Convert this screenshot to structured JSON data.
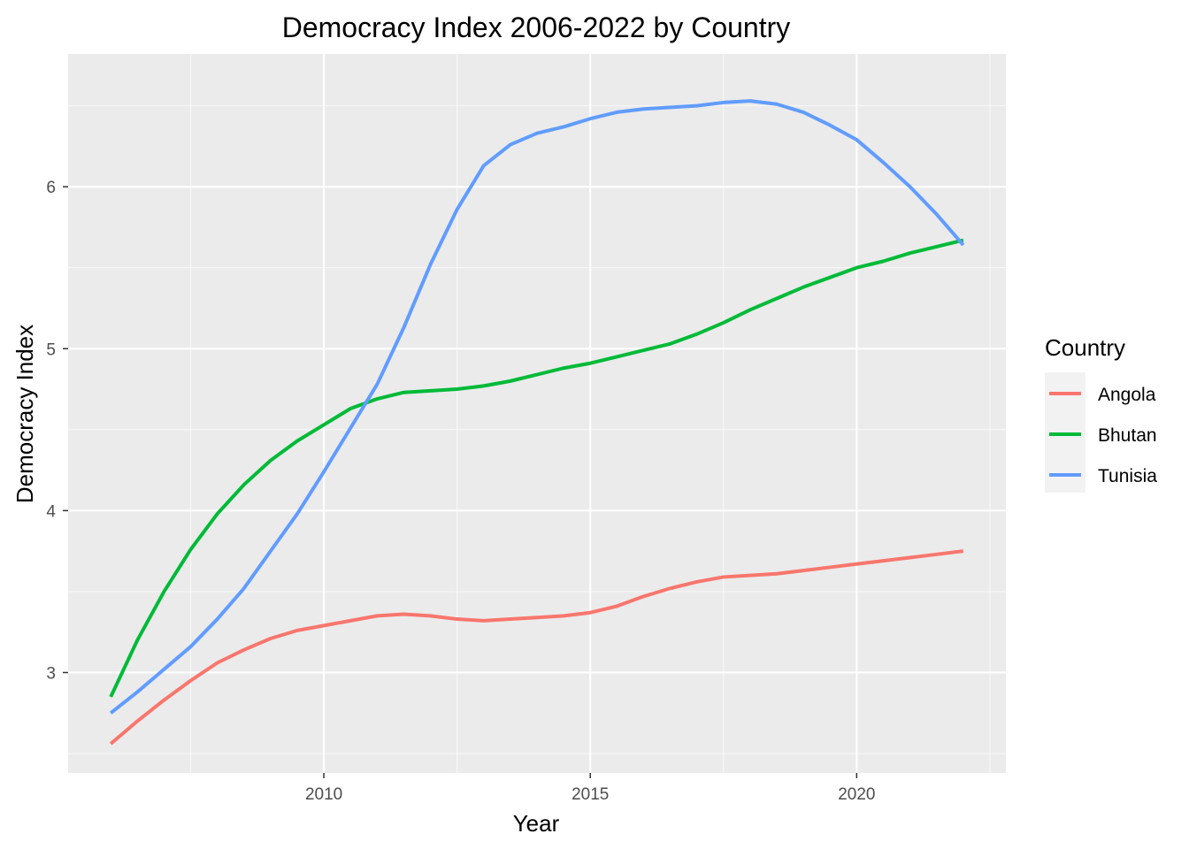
{
  "chart_data": {
    "type": "line",
    "title": "Democracy Index 2006-2022 by Country",
    "xlabel": "Year",
    "ylabel": "Democracy Index",
    "xlim": [
      2005.2,
      2022.8
    ],
    "ylim": [
      2.38,
      6.82
    ],
    "x_ticks": [
      2010,
      2015,
      2020
    ],
    "x_tick_labels": [
      "2010",
      "2015",
      "2020"
    ],
    "x_minor_ticks": [
      2007.5,
      2012.5,
      2017.5,
      2022.5
    ],
    "y_ticks": [
      3,
      4,
      5,
      6
    ],
    "y_tick_labels": [
      "3",
      "4",
      "5",
      "6"
    ],
    "y_minor_ticks": [
      2.5,
      3.5,
      4.5,
      5.5,
      6.5
    ],
    "grid": true,
    "background": "#ebebeb",
    "legend": {
      "title": "Country",
      "position": "right"
    },
    "series": [
      {
        "name": "Angola",
        "color": "#f8766d",
        "x": [
          2006,
          2006.5,
          2007,
          2007.5,
          2008,
          2008.5,
          2009,
          2009.5,
          2010,
          2010.5,
          2011,
          2011.5,
          2012,
          2012.5,
          2013,
          2013.5,
          2014,
          2014.5,
          2015,
          2015.5,
          2016,
          2016.5,
          2017,
          2017.5,
          2018,
          2018.5,
          2019,
          2019.5,
          2020,
          2020.5,
          2021,
          2021.5,
          2022
        ],
        "y": [
          2.56,
          2.7,
          2.83,
          2.95,
          3.06,
          3.14,
          3.21,
          3.26,
          3.29,
          3.32,
          3.35,
          3.36,
          3.35,
          3.33,
          3.32,
          3.33,
          3.34,
          3.35,
          3.37,
          3.41,
          3.47,
          3.52,
          3.56,
          3.59,
          3.6,
          3.61,
          3.63,
          3.65,
          3.67,
          3.69,
          3.71,
          3.73,
          3.75
        ]
      },
      {
        "name": "Bhutan",
        "color": "#00ba38",
        "x": [
          2006,
          2006.5,
          2007,
          2007.5,
          2008,
          2008.5,
          2009,
          2009.5,
          2010,
          2010.5,
          2011,
          2011.5,
          2012,
          2012.5,
          2013,
          2013.5,
          2014,
          2014.5,
          2015,
          2015.5,
          2016,
          2016.5,
          2017,
          2017.5,
          2018,
          2018.5,
          2019,
          2019.5,
          2020,
          2020.5,
          2021,
          2021.5,
          2022
        ],
        "y": [
          2.85,
          3.2,
          3.5,
          3.76,
          3.98,
          4.16,
          4.31,
          4.43,
          4.53,
          4.63,
          4.69,
          4.73,
          4.74,
          4.75,
          4.77,
          4.8,
          4.84,
          4.88,
          4.91,
          4.95,
          4.99,
          5.03,
          5.09,
          5.16,
          5.24,
          5.31,
          5.38,
          5.44,
          5.5,
          5.54,
          5.59,
          5.63,
          5.67
        ]
      },
      {
        "name": "Tunisia",
        "color": "#619cff",
        "x": [
          2006,
          2006.5,
          2007,
          2007.5,
          2008,
          2008.5,
          2009,
          2009.5,
          2010,
          2010.5,
          2011,
          2011.5,
          2012,
          2012.5,
          2013,
          2013.5,
          2014,
          2014.5,
          2015,
          2015.5,
          2016,
          2016.5,
          2017,
          2017.5,
          2018,
          2018.5,
          2019,
          2019.5,
          2020,
          2020.5,
          2021,
          2021.5,
          2022
        ],
        "y": [
          2.75,
          2.88,
          3.02,
          3.16,
          3.33,
          3.52,
          3.75,
          3.98,
          4.24,
          4.51,
          4.78,
          5.13,
          5.52,
          5.86,
          6.13,
          6.26,
          6.33,
          6.37,
          6.42,
          6.46,
          6.48,
          6.49,
          6.5,
          6.52,
          6.53,
          6.51,
          6.46,
          6.38,
          6.29,
          6.15,
          6.0,
          5.83,
          5.64
        ]
      }
    ]
  }
}
